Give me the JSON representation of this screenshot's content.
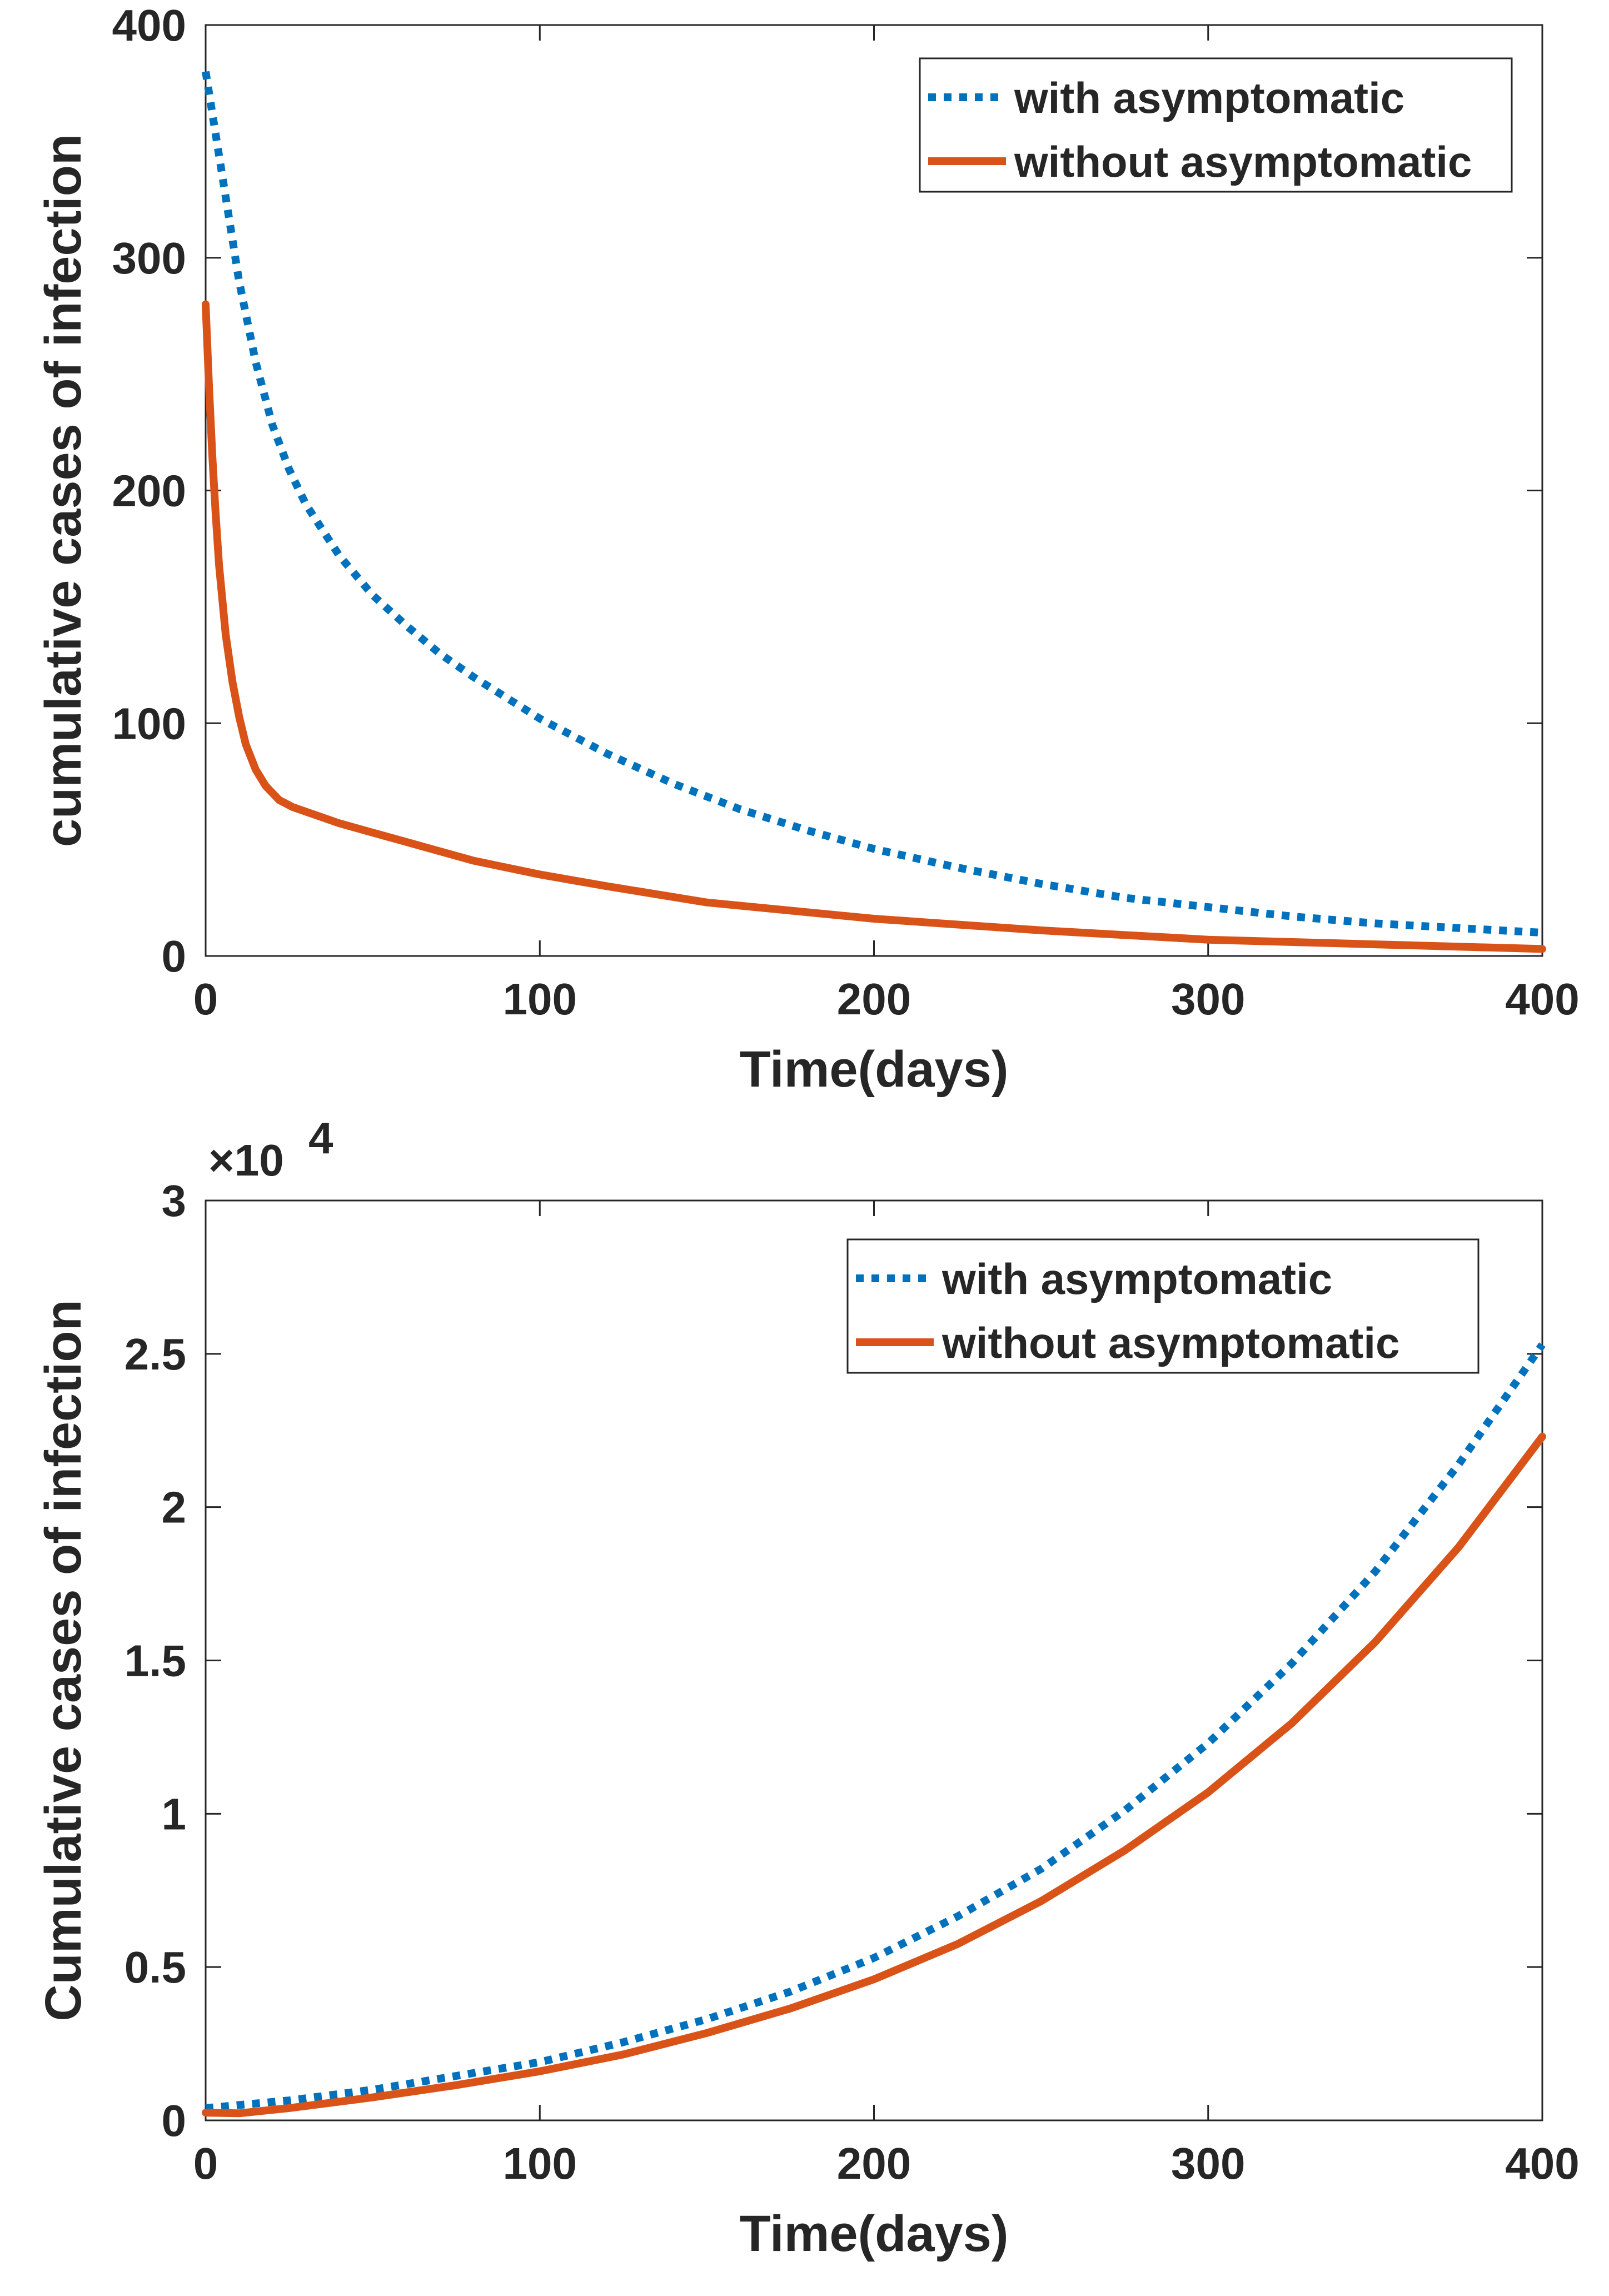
{
  "colors": {
    "with_asymptomatic": "#0072BD",
    "without_asymptomatic": "#D95319",
    "axes": "#262626",
    "background": "#ffffff"
  },
  "chart_data": [
    {
      "type": "line",
      "xlabel": "Time(days)",
      "ylabel": "cumulative cases of infection",
      "xlim": [
        0,
        400
      ],
      "ylim": [
        0,
        400
      ],
      "xticks": [
        0,
        100,
        200,
        300,
        400
      ],
      "xtick_labels": [
        "0",
        "100",
        "200",
        "300",
        "400"
      ],
      "yticks": [
        0,
        100,
        200,
        300,
        400
      ],
      "ytick_labels": [
        "0",
        "100",
        "200",
        "300",
        "400"
      ],
      "legend_position": "top-right",
      "series": [
        {
          "name": "with asymptomatic",
          "style": "dotted",
          "x": [
            0,
            5,
            10,
            15,
            20,
            25,
            30,
            40,
            50,
            60,
            70,
            80,
            100,
            120,
            140,
            160,
            180,
            200,
            225,
            250,
            275,
            300,
            325,
            350,
            375,
            400
          ],
          "y": [
            380,
            335,
            290,
            255,
            228,
            209,
            194,
            172,
            155,
            142,
            130,
            120,
            102,
            87,
            74,
            63,
            54,
            46,
            38,
            31,
            25,
            21,
            17,
            14,
            12,
            10
          ]
        },
        {
          "name": "without asymptomatic",
          "style": "solid",
          "x": [
            0,
            1,
            2,
            3,
            4,
            6,
            8,
            10,
            12,
            15,
            18,
            22,
            26,
            30,
            40,
            50,
            60,
            80,
            100,
            120,
            150,
            200,
            250,
            300,
            350,
            400
          ],
          "y": [
            280,
            245,
            215,
            190,
            168,
            138,
            118,
            103,
            91,
            80,
            73,
            67,
            64,
            62,
            57,
            53,
            49,
            41,
            35,
            30,
            23,
            16,
            11,
            7,
            5,
            3
          ]
        }
      ]
    },
    {
      "type": "line",
      "xlabel": "Time(days)",
      "ylabel": "Cumulative cases of infection",
      "exponent_label": "×10",
      "exponent_power": "4",
      "xlim": [
        0,
        400
      ],
      "ylim": [
        0,
        30000
      ],
      "xticks": [
        0,
        100,
        200,
        300,
        400
      ],
      "xtick_labels": [
        "0",
        "100",
        "200",
        "300",
        "400"
      ],
      "yticks": [
        0,
        5000,
        10000,
        15000,
        20000,
        25000,
        30000
      ],
      "ytick_labels": [
        "0",
        "0.5",
        "1",
        "1.5",
        "2",
        "2.5",
        "3"
      ],
      "legend_position": "top-right",
      "series": [
        {
          "name": "with asymptomatic",
          "style": "dotted",
          "x": [
            0,
            25,
            50,
            75,
            100,
            125,
            150,
            175,
            200,
            225,
            250,
            275,
            300,
            325,
            350,
            375,
            400
          ],
          "y": [
            400,
            650,
            1000,
            1450,
            1900,
            2550,
            3300,
            4200,
            5300,
            6650,
            8200,
            10100,
            12300,
            14900,
            17900,
            21400,
            25300
          ]
        },
        {
          "name": "without asymptomatic",
          "style": "solid",
          "x": [
            0,
            10,
            25,
            50,
            75,
            100,
            125,
            150,
            175,
            200,
            225,
            250,
            275,
            300,
            325,
            350,
            375,
            400
          ],
          "y": [
            250,
            230,
            400,
            750,
            1150,
            1600,
            2150,
            2850,
            3650,
            4600,
            5750,
            7150,
            8800,
            10700,
            12950,
            15600,
            18700,
            22300
          ]
        }
      ]
    }
  ]
}
